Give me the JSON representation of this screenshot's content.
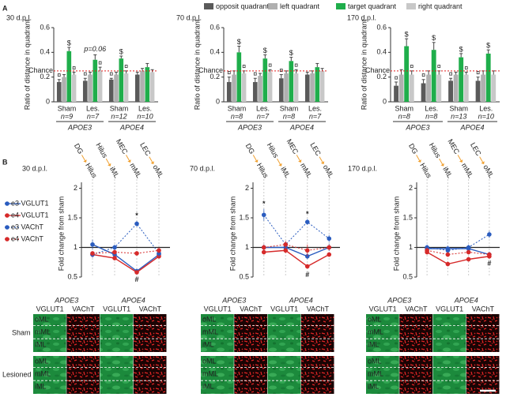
{
  "panels": [
    "A",
    "B"
  ],
  "chart_data": [
    {
      "type": "bar",
      "title": "30 d.p.l.",
      "ylabel": "Ratio of distance in quadrant",
      "categories": [
        "Sham",
        "Les.",
        "Sham",
        "Les."
      ],
      "sub_labels": [
        "n=9",
        "n=7",
        "n=12",
        "n=10"
      ],
      "groups": [
        "APOE3",
        "APOE4"
      ],
      "ylim": [
        0,
        0.6
      ],
      "yticks": [
        0,
        0.2,
        0.4,
        0.6
      ],
      "reference_line": {
        "value": 0.25,
        "label": "Chance",
        "color": "#e02020"
      },
      "series": [
        {
          "name": "opposit quadrant",
          "color": "#5a5a5a",
          "values": [
            0.16,
            0.17,
            0.18,
            0.22
          ],
          "errors": [
            0.02,
            0.02,
            0.01,
            0.02
          ],
          "annotations": [
            "¤",
            "¤",
            "¤",
            null
          ]
        },
        {
          "name": "left quadrant",
          "color": "#b0b0b0",
          "values": [
            0.2,
            0.22,
            0.22,
            0.25
          ],
          "errors": [
            0.02,
            0.02,
            0.02,
            0.02
          ]
        },
        {
          "name": "target quadrant",
          "color": "#1fae4b",
          "values": [
            0.41,
            0.34,
            0.35,
            0.28
          ],
          "errors": [
            0.03,
            0.04,
            0.02,
            0.03
          ],
          "annotations": [
            "$",
            "p=0.06",
            "$",
            null
          ]
        },
        {
          "name": "right quadrant",
          "color": "#c8c8c8",
          "values": [
            0.22,
            0.25,
            0.23,
            0.24
          ],
          "errors": [
            0.02,
            0.03,
            0.02,
            0.02
          ],
          "annotations": [
            "¤",
            "¤",
            "¤",
            null
          ]
        }
      ]
    },
    {
      "type": "bar",
      "title": "70 d.p.l.",
      "ylabel": "Ratio of distance in quadrant",
      "categories": [
        "Sham",
        "Les.",
        "Sham",
        "Les."
      ],
      "sub_labels": [
        "n=8",
        "n=7",
        "n=8",
        "n=7"
      ],
      "groups": [
        "APOE3",
        "APOE4"
      ],
      "ylim": [
        0,
        0.6
      ],
      "yticks": [
        0,
        0.2,
        0.4,
        0.6
      ],
      "reference_line": {
        "value": 0.25,
        "label": "Chance",
        "color": "#e02020"
      },
      "series": [
        {
          "color": "#5a5a5a",
          "values": [
            0.16,
            0.16,
            0.19,
            0.22
          ],
          "errors": [
            0.04,
            0.03,
            0.03,
            0.02
          ],
          "annotations": [
            "¤",
            "¤",
            "¤",
            null
          ]
        },
        {
          "color": "#b0b0b0",
          "values": [
            0.22,
            0.21,
            0.23,
            0.23
          ],
          "errors": [
            0.03,
            0.02,
            0.02,
            0.02
          ]
        },
        {
          "color": "#1fae4b",
          "values": [
            0.4,
            0.35,
            0.33,
            0.28
          ],
          "errors": [
            0.05,
            0.03,
            0.03,
            0.03
          ],
          "annotations": [
            "$",
            "$",
            "$",
            null
          ]
        },
        {
          "color": "#c8c8c8",
          "values": [
            0.23,
            0.24,
            0.23,
            0.25
          ],
          "errors": [
            0.02,
            0.02,
            0.03,
            0.02
          ],
          "annotations": [
            "¤",
            "¤",
            "¤",
            null
          ]
        }
      ]
    },
    {
      "type": "bar",
      "title": "170 d.p.l.",
      "ylabel": "Ratio of distance in quadrant",
      "categories": [
        "Sham",
        "Les.",
        "Sham",
        "Les."
      ],
      "sub_labels": [
        "n=8",
        "n=8",
        "n=13",
        "n=10"
      ],
      "groups": [
        "APOE3",
        "APOE4"
      ],
      "ylim": [
        0,
        0.6
      ],
      "yticks": [
        0,
        0.2,
        0.4,
        0.6
      ],
      "reference_line": {
        "value": 0.25,
        "label": "Chance",
        "color": "#e02020"
      },
      "series": [
        {
          "color": "#5a5a5a",
          "values": [
            0.13,
            0.15,
            0.17,
            0.17
          ],
          "errors": [
            0.03,
            0.03,
            0.02,
            0.03
          ],
          "annotations": [
            "¤",
            "¤",
            "¤",
            "¤"
          ]
        },
        {
          "color": "#b0b0b0",
          "values": [
            0.22,
            0.22,
            0.22,
            0.22
          ],
          "errors": [
            0.04,
            0.03,
            0.02,
            0.03
          ]
        },
        {
          "color": "#1fae4b",
          "values": [
            0.45,
            0.42,
            0.36,
            0.39
          ],
          "errors": [
            0.06,
            0.06,
            0.03,
            0.03
          ],
          "annotations": [
            "$",
            "$",
            "$",
            "$"
          ]
        },
        {
          "color": "#c8c8c8",
          "values": [
            0.22,
            0.22,
            0.22,
            0.22
          ],
          "errors": [
            0.03,
            0.03,
            0.02,
            0.03
          ],
          "annotations": [
            "¤",
            "¤",
            "¤",
            null
          ]
        }
      ]
    },
    {
      "type": "line",
      "title": "30 d.p.l.",
      "ylabel": "Fold change from sham",
      "sources": [
        "DG",
        "Hilus",
        "MEC",
        "LEC"
      ],
      "targets": [
        "Hilus",
        "iML",
        "mML",
        "oML"
      ],
      "ylim": [
        0.5,
        2.1
      ],
      "yticks": [
        0.5,
        1,
        1.5,
        2
      ],
      "reference_line": {
        "value": 1
      },
      "series": [
        {
          "name": "e3 VGLUT1",
          "color": "#2a5cbf",
          "dash": false,
          "values": [
            1.05,
            0.88,
            0.6,
            0.88
          ],
          "errors": [
            0.08,
            0.04,
            0.04,
            0.05
          ],
          "annotations": [
            null,
            null,
            "#",
            null
          ]
        },
        {
          "name": "e4 VGLUT1",
          "color": "#d62a2a",
          "dash": false,
          "values": [
            0.88,
            0.82,
            0.58,
            0.85
          ],
          "errors": [
            0.05,
            0.04,
            0.03,
            0.04
          ]
        },
        {
          "name": "e3 VAChT",
          "color": "#2a5cbf",
          "dash": true,
          "values": [
            0.88,
            1.0,
            1.4,
            0.9
          ],
          "errors": [
            0.05,
            0.05,
            0.05,
            0.06
          ],
          "annotations": [
            null,
            null,
            "*",
            null
          ]
        },
        {
          "name": "e4 VAChT",
          "color": "#d62a2a",
          "dash": true,
          "values": [
            0.9,
            0.92,
            0.9,
            0.95
          ],
          "errors": [
            0.04,
            0.04,
            0.04,
            0.05
          ]
        }
      ]
    },
    {
      "type": "line",
      "title": "70 d.p.l.",
      "ylabel": "Fold change from sham",
      "sources": [
        "DG",
        "Hilus",
        "MEC",
        "LEC"
      ],
      "targets": [
        "Hilus",
        "iML",
        "mML",
        "oML"
      ],
      "ylim": [
        0.5,
        2.1
      ],
      "yticks": [
        0.5,
        1,
        1.5,
        2
      ],
      "reference_line": {
        "value": 1
      },
      "series": [
        {
          "color": "#2a5cbf",
          "dash": false,
          "values": [
            1.0,
            1.0,
            0.85,
            1.0
          ],
          "errors": [
            0.05,
            0.05,
            0.05,
            0.06
          ]
        },
        {
          "color": "#d62a2a",
          "dash": false,
          "values": [
            0.92,
            0.95,
            0.68,
            0.88
          ],
          "errors": [
            0.04,
            0.05,
            0.04,
            0.04
          ],
          "annotations": [
            null,
            null,
            "#",
            null
          ]
        },
        {
          "color": "#2a5cbf",
          "dash": true,
          "values": [
            1.55,
            1.05,
            1.43,
            1.15
          ],
          "errors": [
            0.1,
            0.05,
            0.05,
            0.06
          ],
          "annotations": [
            "*",
            null,
            "*",
            null
          ]
        },
        {
          "color": "#d62a2a",
          "dash": true,
          "values": [
            1.0,
            1.05,
            0.95,
            1.0
          ],
          "errors": [
            0.05,
            0.06,
            0.1,
            0.05
          ]
        }
      ]
    },
    {
      "type": "line",
      "title": "170 d.p.l.",
      "ylabel": "Fold change from sham",
      "sources": [
        "DG",
        "Hilus",
        "MEC",
        "LEC"
      ],
      "targets": [
        "Hilus",
        "iML",
        "mML",
        "oML"
      ],
      "ylim": [
        0.5,
        2.1
      ],
      "yticks": [
        0.5,
        1,
        1.5,
        2
      ],
      "reference_line": {
        "value": 1
      },
      "series": [
        {
          "color": "#2a5cbf",
          "dash": false,
          "values": [
            0.98,
            0.98,
            0.98,
            0.88
          ],
          "errors": [
            0.05,
            0.05,
            0.05,
            0.05
          ],
          "annotations": [
            null,
            null,
            null,
            "#"
          ]
        },
        {
          "color": "#d62a2a",
          "dash": false,
          "values": [
            0.92,
            0.72,
            0.8,
            0.85
          ],
          "errors": [
            0.04,
            0.04,
            0.04,
            0.04
          ]
        },
        {
          "color": "#2a5cbf",
          "dash": true,
          "values": [
            1.0,
            0.95,
            1.0,
            1.22
          ],
          "errors": [
            0.05,
            0.04,
            0.05,
            0.06
          ]
        },
        {
          "color": "#d62a2a",
          "dash": true,
          "values": [
            0.95,
            0.88,
            0.92,
            0.88
          ],
          "errors": [
            0.05,
            0.04,
            0.04,
            0.04
          ]
        }
      ]
    }
  ],
  "images": {
    "groups": [
      "APOE3",
      "APOE4"
    ],
    "stains": [
      "VGLUT1",
      "VAChT"
    ],
    "stain_colors": [
      "#22a045",
      "#e02020"
    ],
    "layers": [
      "oML",
      "mML",
      "iML"
    ],
    "rows": [
      "Sham",
      "Lesioned"
    ]
  }
}
